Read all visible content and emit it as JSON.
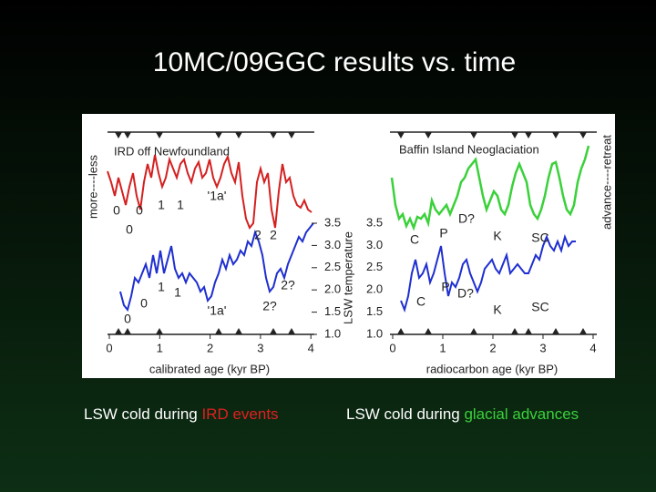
{
  "title": "10MC/09GGC results vs. time",
  "figure": {
    "left": {
      "label": "IRD off Newfoundland",
      "y_label": "more----less",
      "annotations": [
        "0",
        "0",
        "1",
        "1",
        "'1a'",
        "0",
        "2",
        "2",
        "1",
        "1",
        "0",
        "'1a'",
        "2?",
        "2?",
        "0"
      ],
      "scale_ticks": [
        "3.5",
        "3.0",
        "2.5",
        "2.0",
        "1.5",
        "1.0"
      ],
      "xticks": [
        "0",
        "1",
        "2",
        "3",
        "4"
      ],
      "x_label": "calibrated age (kyr BP)"
    },
    "center_label": "LSW temperature",
    "right": {
      "label": "Baffin Island Neoglaciation",
      "y_label": "advance----retreat",
      "annotations": [
        "D?",
        "C",
        "P",
        "K",
        "SC",
        "C",
        "P",
        "D?",
        "K",
        "SC"
      ],
      "scale_ticks": [
        "3.5",
        "3.0",
        "2.5",
        "2.0",
        "1.5",
        "1.0"
      ],
      "xticks": [
        "0",
        "1",
        "2",
        "3",
        "4"
      ],
      "x_label": "radiocarbon age (kyr BP)"
    }
  },
  "captions": [
    {
      "text": "LSW cold during ",
      "highlight": "IRD events"
    },
    {
      "text": "LSW cold during ",
      "highlight": "glacial advances"
    }
  ]
}
